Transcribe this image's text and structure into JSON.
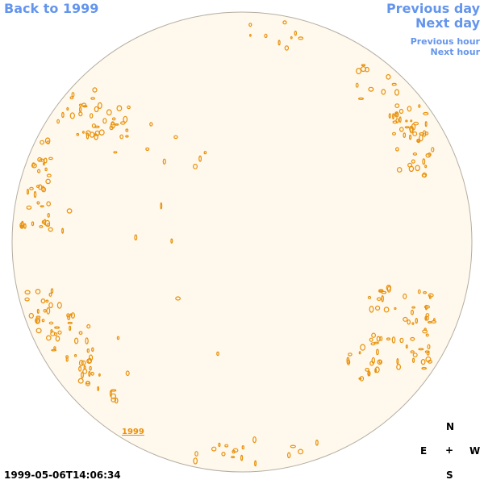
{
  "nav": {
    "back_label": "Back to 1999",
    "previous_day": "Previous day",
    "next_day": "Next day",
    "previous_hour": "Previous hour",
    "next_hour": "Next hour"
  },
  "compass": {
    "north": "N",
    "east": "E",
    "center": "+",
    "west": "W",
    "south": "S"
  },
  "timestamp": "1999-05-06T14:06:34",
  "year_link": "1999",
  "colors": {
    "disk_fill": "#fff8ec",
    "disk_border": "#b4aea2",
    "contour": "#e8910a",
    "link": "#6495ed"
  }
}
